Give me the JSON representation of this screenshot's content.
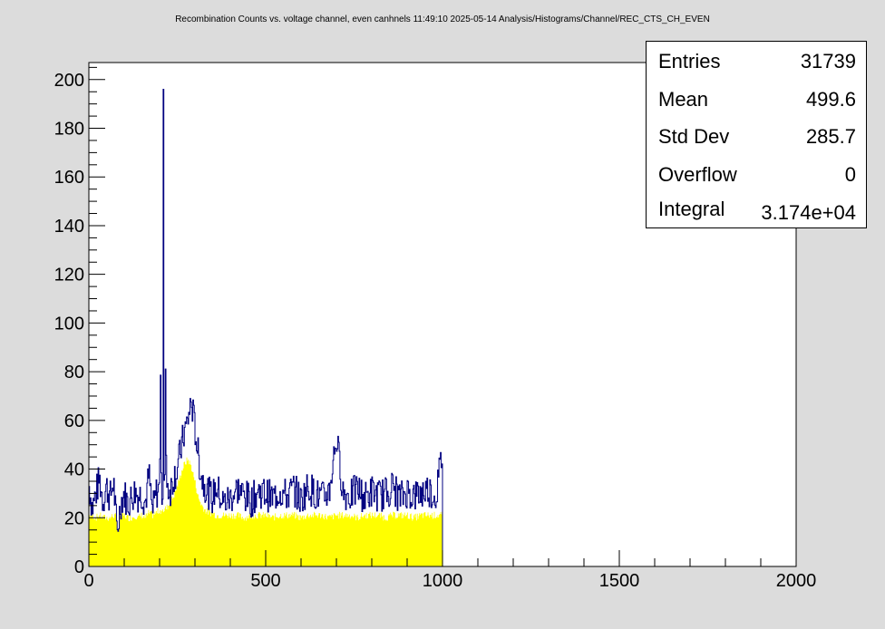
{
  "title": "Recombination Counts vs. voltage channel, even canhnels  11:49:10  2025-05-14  Analysis/Histograms/Channel/REC_CTS_CH_EVEN",
  "stats": [
    {
      "label": "Entries",
      "value": "31739"
    },
    {
      "label": "Mean",
      "value": "499.6"
    },
    {
      "label": "Std Dev",
      "value": "285.7"
    },
    {
      "label": "Overflow",
      "value": "0"
    },
    {
      "label": "Integral",
      "value": "3.174e+04"
    }
  ],
  "colors": {
    "line": "#000080",
    "fill": "#ffff00",
    "background": "#dcdcdc",
    "plot_bg": "#ffffff"
  },
  "chart_data": {
    "type": "histogram",
    "xlim": [
      0,
      2000
    ],
    "ylim": [
      0,
      207
    ],
    "xticks": [
      "0",
      "500",
      "1000",
      "1500",
      "2000"
    ],
    "yticks": [
      "0",
      "20",
      "40",
      "60",
      "80",
      "100",
      "120",
      "140",
      "160",
      "180",
      "200"
    ],
    "bin_width_estimate": 2,
    "x_range_filled": [
      0,
      1000
    ],
    "annotations": [
      {
        "x": 210,
        "y": 196,
        "label": "spike"
      },
      {
        "x": 282,
        "y": 69
      },
      {
        "x": 704,
        "y": 53
      }
    ],
    "series": [
      {
        "type": "line_and_fill",
        "x": [
          0,
          10,
          20,
          30,
          40,
          50,
          60,
          70,
          80,
          90,
          100,
          110,
          120,
          130,
          140,
          150,
          160,
          170,
          180,
          190,
          200,
          210,
          220,
          230,
          240,
          250,
          260,
          270,
          280,
          290,
          300,
          310,
          320,
          330,
          340,
          350,
          360,
          380,
          400,
          420,
          440,
          460,
          480,
          500,
          520,
          540,
          560,
          580,
          600,
          620,
          640,
          660,
          680,
          700,
          720,
          740,
          760,
          780,
          800,
          820,
          840,
          860,
          880,
          900,
          920,
          940,
          960,
          980,
          999
        ],
        "y": [
          34,
          24,
          30,
          36,
          27,
          33,
          28,
          35,
          13,
          26,
          30,
          26,
          28,
          31,
          29,
          30,
          26,
          38,
          22,
          30,
          32,
          196,
          34,
          31,
          37,
          40,
          48,
          55,
          60,
          68,
          57,
          45,
          36,
          33,
          30,
          28,
          33,
          26,
          28,
          32,
          29,
          27,
          31,
          30,
          28,
          31,
          29,
          32,
          27,
          33,
          30,
          28,
          31,
          53,
          30,
          29,
          32,
          28,
          31,
          29,
          30,
          33,
          28,
          31,
          29,
          30,
          32,
          28,
          46
        ],
        "fill_y": [
          21,
          21,
          20,
          21,
          20,
          20,
          20,
          21,
          20,
          20,
          21,
          20,
          20,
          21,
          20,
          21,
          20,
          22,
          21,
          22,
          23,
          23,
          24,
          26,
          29,
          33,
          38,
          42,
          44,
          41,
          35,
          28,
          25,
          23,
          22,
          22,
          21,
          21,
          21,
          21,
          20,
          21,
          21,
          21,
          20,
          21,
          21,
          21,
          20,
          21,
          21,
          21,
          20,
          21,
          21,
          21,
          20,
          21,
          21,
          21,
          20,
          21,
          21,
          21,
          20,
          21,
          21,
          21,
          21
        ]
      }
    ]
  }
}
